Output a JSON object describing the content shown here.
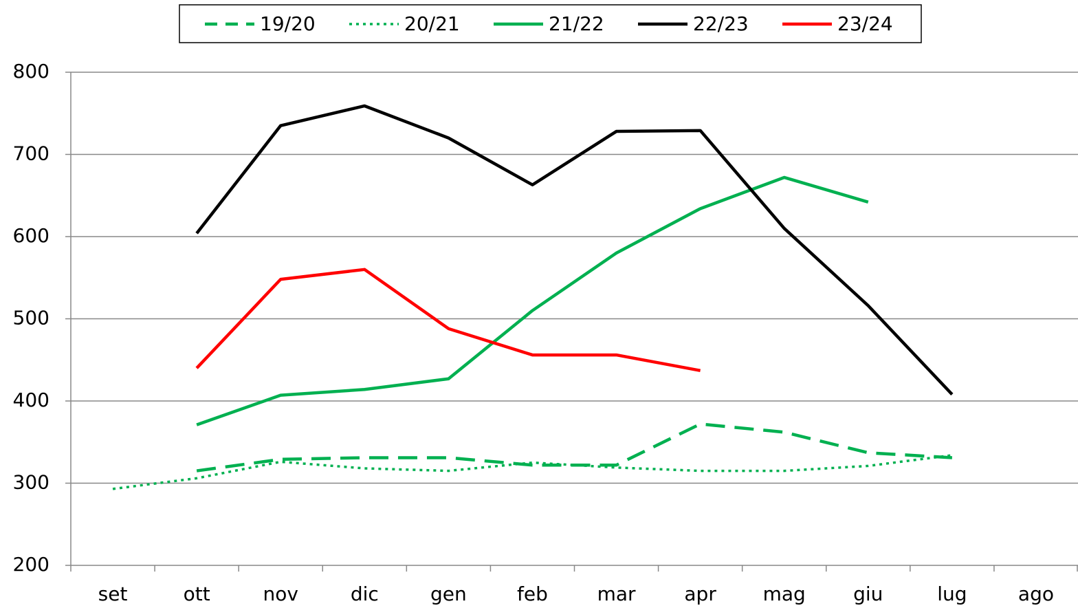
{
  "chart_data": {
    "type": "line",
    "categories": [
      "set",
      "ott",
      "nov",
      "dic",
      "gen",
      "feb",
      "mar",
      "apr",
      "mag",
      "giu",
      "lug",
      "ago"
    ],
    "series": [
      {
        "name": "19/20",
        "color": "#00b050",
        "style": "dashed",
        "values": [
          null,
          315,
          329,
          331,
          331,
          322,
          322,
          372,
          362,
          337,
          331,
          null
        ]
      },
      {
        "name": "20/21",
        "color": "#00b050",
        "style": "dotted",
        "values": [
          293,
          306,
          326,
          318,
          315,
          325,
          319,
          315,
          315,
          321,
          334,
          null
        ]
      },
      {
        "name": "21/22",
        "color": "#00b050",
        "style": "solid",
        "values": [
          null,
          371,
          407,
          414,
          427,
          510,
          580,
          634,
          672,
          642,
          null,
          null
        ]
      },
      {
        "name": "22/23",
        "color": "#000000",
        "style": "solid",
        "values": [
          null,
          604,
          735,
          759,
          720,
          663,
          728,
          729,
          610,
          516,
          408,
          null
        ]
      },
      {
        "name": "23/24",
        "color": "#ff0000",
        "style": "solid",
        "values": [
          null,
          440,
          548,
          560,
          488,
          456,
          456,
          437,
          null,
          null,
          null,
          null
        ]
      }
    ],
    "ylim": [
      200,
      800
    ],
    "yticks": [
      200,
      300,
      400,
      500,
      600,
      700,
      800
    ],
    "grid": true,
    "legend": "top"
  }
}
